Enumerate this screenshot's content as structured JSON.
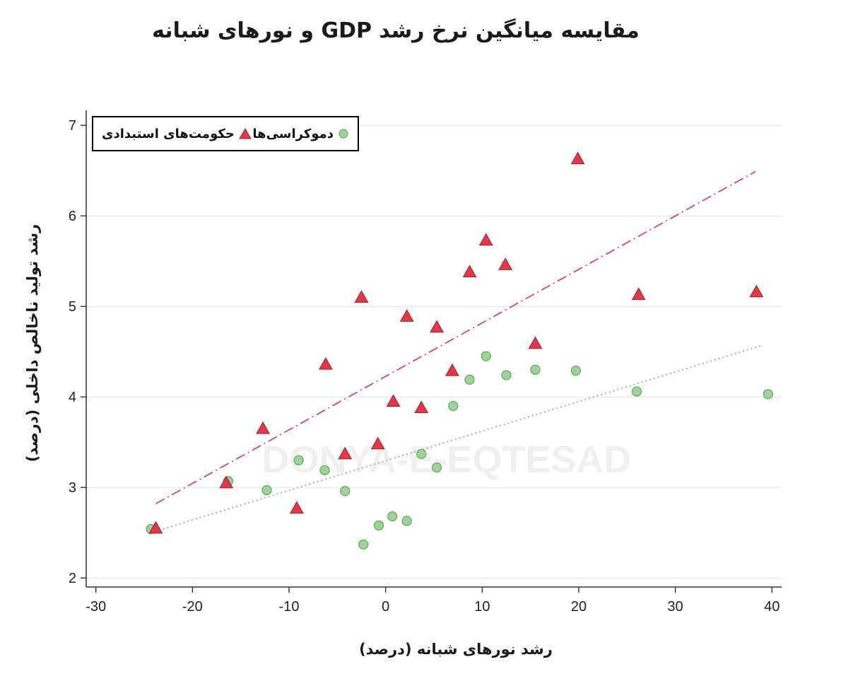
{
  "chart_data": {
    "type": "scatter",
    "title": "مقایسه میانگین نرخ رشد GDP و نورهای شبانه",
    "xlabel": "رشد نورهای شبانه (درصد)",
    "ylabel": "رشد تولید ناخالص داخلی (درصد)",
    "xlim": [
      -31,
      41
    ],
    "ylim": [
      1.9,
      7.15
    ],
    "xticks": [
      -30,
      -20,
      -10,
      0,
      10,
      20,
      30,
      40
    ],
    "yticks": [
      2,
      3,
      4,
      5,
      6,
      7
    ],
    "grid": "horizontal",
    "legend_position": "top-left",
    "watermark": "DONYA-E-EQTESAD",
    "series": [
      {
        "name": "دموکراسی‌ها",
        "marker": "circle",
        "color": "#9fd29a",
        "points": [
          [
            -24.3,
            2.54
          ],
          [
            -16.3,
            3.07
          ],
          [
            -12.3,
            2.97
          ],
          [
            -9.0,
            3.3
          ],
          [
            -6.3,
            3.19
          ],
          [
            -4.2,
            2.96
          ],
          [
            -2.3,
            2.37
          ],
          [
            -0.7,
            2.58
          ],
          [
            0.7,
            2.68
          ],
          [
            2.2,
            2.63
          ],
          [
            3.7,
            3.37
          ],
          [
            5.3,
            3.22
          ],
          [
            7.0,
            3.9
          ],
          [
            8.7,
            4.19
          ],
          [
            10.4,
            4.45
          ],
          [
            12.5,
            4.24
          ],
          [
            15.5,
            4.3
          ],
          [
            19.7,
            4.29
          ],
          [
            26.0,
            4.06
          ],
          [
            39.6,
            4.03
          ]
        ],
        "trend": [
          [
            -24.3,
            2.5
          ],
          [
            39.0,
            4.57
          ]
        ]
      },
      {
        "name": "حکومت‌های استبدادی",
        "marker": "triangle",
        "color": "#e03a4a",
        "points": [
          [
            -23.8,
            2.55
          ],
          [
            -16.5,
            3.05
          ],
          [
            -12.7,
            3.65
          ],
          [
            -9.2,
            2.77
          ],
          [
            -6.2,
            4.36
          ],
          [
            -4.2,
            3.37
          ],
          [
            -2.5,
            5.1
          ],
          [
            -0.8,
            3.48
          ],
          [
            0.8,
            3.95
          ],
          [
            2.2,
            4.89
          ],
          [
            3.7,
            3.88
          ],
          [
            5.3,
            4.77
          ],
          [
            6.9,
            4.29
          ],
          [
            8.7,
            5.38
          ],
          [
            10.4,
            5.73
          ],
          [
            12.4,
            5.46
          ],
          [
            15.5,
            4.59
          ],
          [
            19.9,
            6.63
          ],
          [
            26.2,
            5.13
          ],
          [
            38.4,
            5.16
          ]
        ],
        "trend": [
          [
            -23.8,
            2.82
          ],
          [
            38.3,
            6.49
          ]
        ]
      }
    ]
  }
}
